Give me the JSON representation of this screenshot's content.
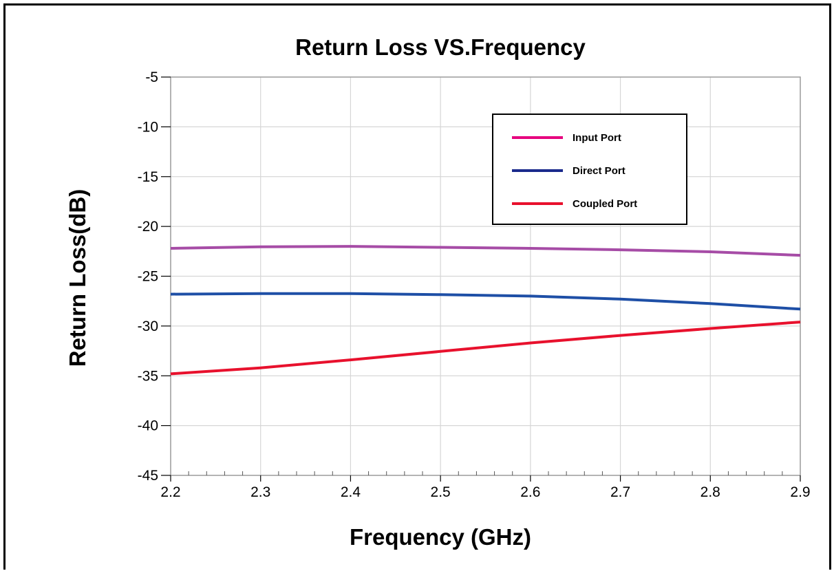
{
  "chart_data": {
    "type": "line",
    "title": "Return Loss VS.Frequency",
    "xlabel": "Frequency (GHz)",
    "ylabel": "Return Loss(dB)",
    "xlim": [
      2.2,
      2.9
    ],
    "ylim": [
      -45,
      -5
    ],
    "xticks": [
      "2.2",
      "2.3",
      "2.4",
      "2.5",
      "2.6",
      "2.7",
      "2.8",
      "2.9"
    ],
    "yticks": [
      "-5",
      "-10",
      "-15",
      "-20",
      "-25",
      "-30",
      "-35",
      "-40",
      "-45"
    ],
    "grid": true,
    "legend_position": "top-right",
    "x": [
      2.2,
      2.3,
      2.4,
      2.5,
      2.6,
      2.7,
      2.8,
      2.9
    ],
    "series": [
      {
        "name": "Input Port",
        "legend_color": "#e6007e",
        "line_color": "#a64ca6",
        "values": [
          -22.2,
          -22.05,
          -22.0,
          -22.1,
          -22.2,
          -22.35,
          -22.55,
          -22.9
        ]
      },
      {
        "name": "Direct Port",
        "legend_color": "#1a2a8c",
        "line_color": "#1e4fa6",
        "values": [
          -26.8,
          -26.75,
          -26.75,
          -26.85,
          -27.0,
          -27.3,
          -27.75,
          -28.3
        ]
      },
      {
        "name": "Coupled Port",
        "legend_color": "#e8112d",
        "line_color": "#e8112d",
        "values": [
          -34.8,
          -34.2,
          -33.4,
          -32.55,
          -31.7,
          -30.95,
          -30.25,
          -29.6
        ]
      }
    ]
  }
}
